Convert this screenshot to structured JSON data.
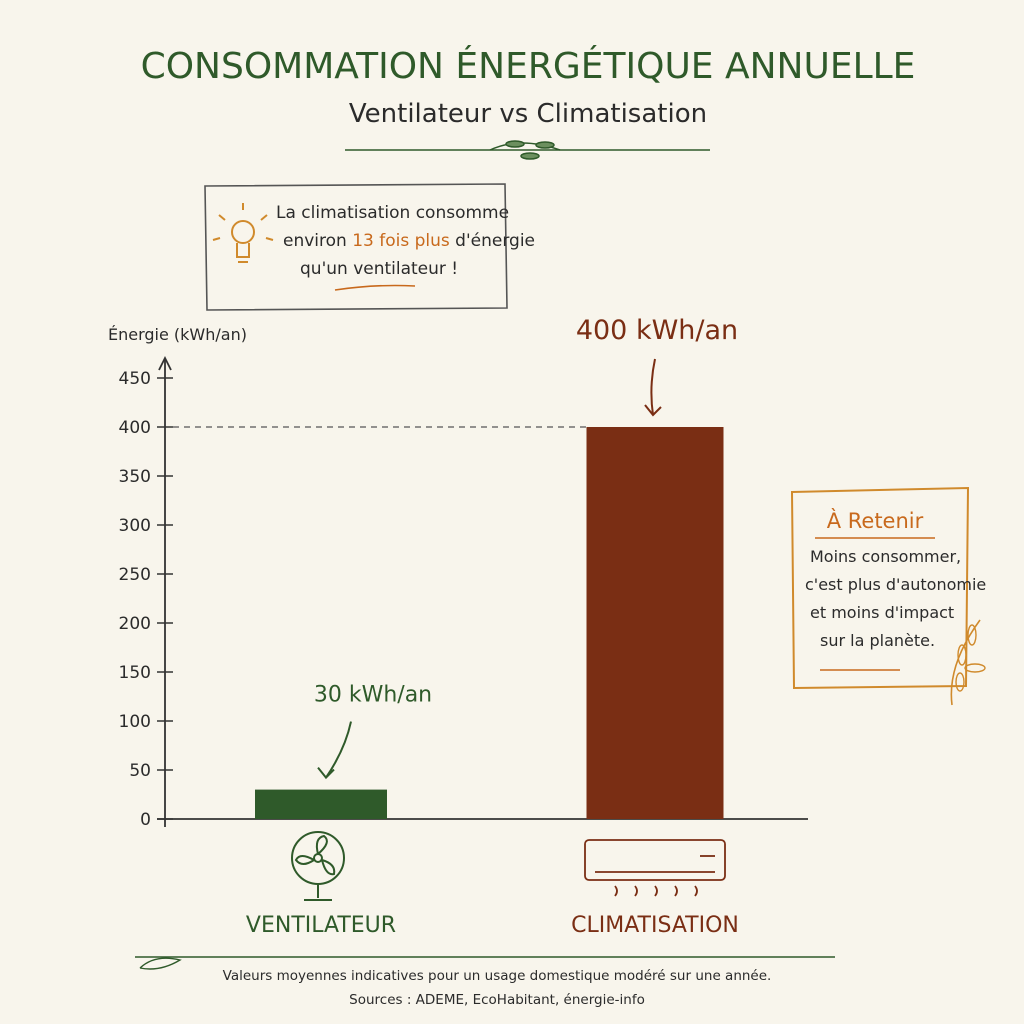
{
  "chart_data": {
    "type": "bar",
    "title": "CONSOMMATION ÉNERGÉTIQUE ANNUELLE",
    "subtitle": "Ventilateur vs Climatisation",
    "y_label": "Énergie (kWh/an)",
    "categories": [
      "VENTILATEUR",
      "CLIMATISATION"
    ],
    "values": [
      30,
      400
    ],
    "value_labels": [
      "30 kWh/an",
      "400 kWh/an"
    ],
    "colors": [
      "#2f5a2a",
      "#7a2e14"
    ],
    "ylim": [
      0,
      450
    ],
    "yticks": [
      0,
      50,
      100,
      150,
      200,
      250,
      300,
      350,
      400,
      450
    ],
    "callout": [
      [
        "La climatisation consomme"
      ],
      [
        "environ ",
        "13 fois plus",
        " d'énergie"
      ],
      [
        "qu'un ventilateur !"
      ]
    ],
    "retenir": {
      "title": "À Retenir",
      "lines": [
        "Moins consommer,",
        "c'est plus d'autonomie",
        "et moins d'impact",
        "sur la planète."
      ]
    },
    "footer": [
      "Valeurs moyennes indicatives pour un usage domestique modéré sur une année.",
      "Sources :  ADEME, EcoHabitant, énergie-info"
    ]
  }
}
